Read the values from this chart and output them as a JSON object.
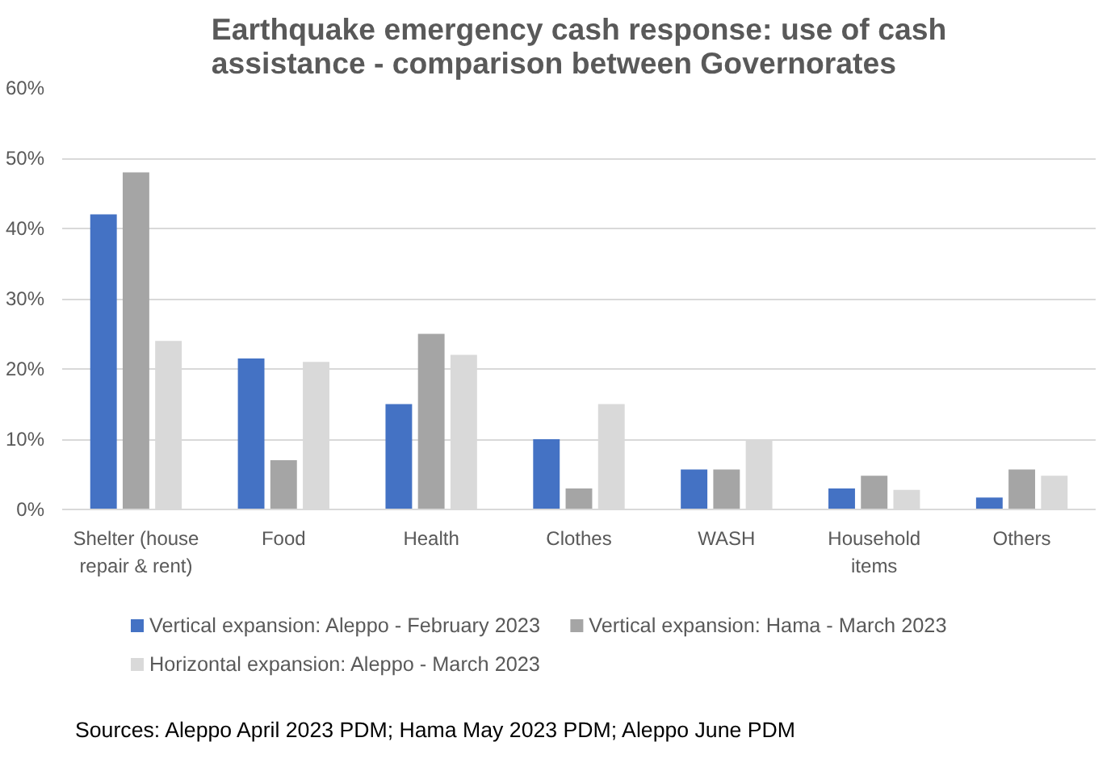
{
  "chart_data": {
    "type": "bar",
    "title": "Earthquake emergency cash response: use of cash assistance - comparison between Governorates",
    "categories": [
      "Shelter (house\nrepair & rent)",
      "Food",
      "Health",
      "Clothes",
      "WASH",
      "Household\nitems",
      "Others"
    ],
    "series": [
      {
        "name": "Vertical expansion: Aleppo - February 2023",
        "color": "#4472c4",
        "values": [
          42,
          21.5,
          15,
          10,
          5.7,
          3,
          1.7
        ]
      },
      {
        "name": "Vertical expansion: Hama - March 2023",
        "color": "#a5a5a5",
        "values": [
          48,
          7,
          25,
          3,
          5.7,
          4.8,
          5.7
        ]
      },
      {
        "name": "Horizontal expansion: Aleppo - March 2023",
        "color": "#d9d9d9",
        "values": [
          24,
          21,
          22,
          15,
          10,
          2.8,
          4.8
        ]
      }
    ],
    "ylim": [
      0,
      60
    ],
    "yticks": [
      {
        "value": 0,
        "label": "0%"
      },
      {
        "value": 10,
        "label": "10%"
      },
      {
        "value": 20,
        "label": "20%"
      },
      {
        "value": 30,
        "label": "30%"
      },
      {
        "value": 40,
        "label": "40%"
      },
      {
        "value": 50,
        "label": "50%"
      },
      {
        "value": 60,
        "label": "60%"
      }
    ],
    "grid": "y",
    "legend": "bottom",
    "annotations": [
      "Sources: Aleppo April 2023 PDM; Hama May 2023 PDM; Aleppo June PDM"
    ]
  }
}
